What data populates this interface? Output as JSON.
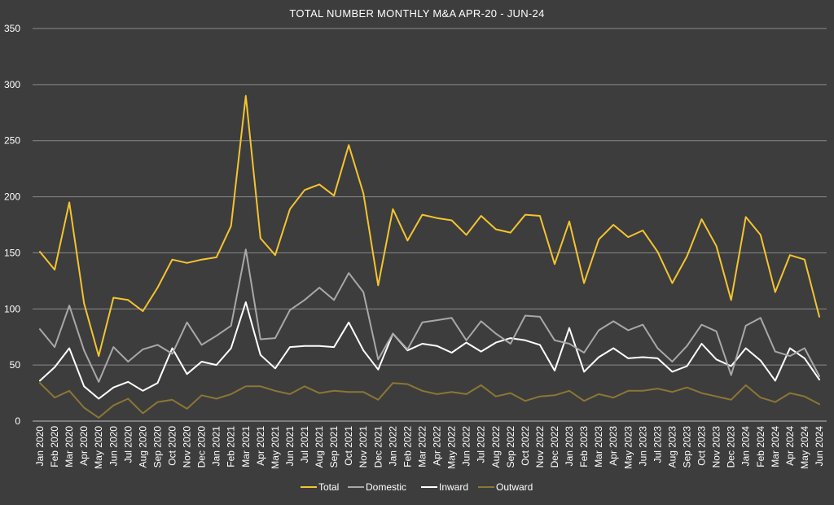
{
  "chart_data": {
    "type": "line",
    "title": "TOTAL NUMBER MONTHLY M&A APR-20 - JUN-24",
    "xlabel": "",
    "ylabel": "",
    "ylim": [
      0,
      350
    ],
    "yticks": [
      0,
      50,
      100,
      150,
      200,
      250,
      300,
      350
    ],
    "grid": true,
    "legend_position": "bottom",
    "background": "#3d3d3d",
    "categories": [
      "Jan 2020",
      "Feb 2020",
      "Mar 2020",
      "Apr 2020",
      "May 2020",
      "Jun 2020",
      "Jul 2020",
      "Aug 2020",
      "Sep 2020",
      "Oct 2020",
      "Nov 2020",
      "Dec 2020",
      "Jan 2021",
      "Feb 2021",
      "Mar 2021",
      "Apr 2021",
      "May 2021",
      "Jun 2021",
      "Jul 2021",
      "Aug 2021",
      "Sep 2021",
      "Oct 2021",
      "Nov 2021",
      "Dec 2021",
      "Jan 2022",
      "Feb 2022",
      "Mar 2022",
      "Apr 2022",
      "May 2022",
      "Jun 2022",
      "Jul 2022",
      "Aug 2022",
      "Sep 2022",
      "Oct 2022",
      "Nov 2022",
      "Dec 2022",
      "Jan 2023",
      "Feb 2023",
      "Mar 2023",
      "Apr 2023",
      "May 2023",
      "Jun 2023",
      "Jul 2023",
      "Aug 2023",
      "Sep 2023",
      "Oct 2023",
      "Nov 2023",
      "Dec 2023",
      "Jan 2024",
      "Feb 2024",
      "Mar 2024",
      "Apr 2024",
      "May 2024",
      "Jun 2024"
    ],
    "series": [
      {
        "name": "Total",
        "color": "#f4c430",
        "values": [
          151,
          135,
          195,
          105,
          58,
          110,
          108,
          98,
          119,
          144,
          141,
          144,
          146,
          174,
          290,
          163,
          148,
          189,
          206,
          211,
          201,
          246,
          203,
          121,
          189,
          161,
          184,
          181,
          179,
          166,
          183,
          171,
          168,
          184,
          183,
          140,
          178,
          123,
          162,
          175,
          164,
          170,
          151,
          123,
          147,
          180,
          156,
          108,
          182,
          166,
          115,
          148,
          144,
          93
        ]
      },
      {
        "name": "Domestic",
        "color": "#a8a8a8",
        "values": [
          82,
          66,
          103,
          63,
          35,
          66,
          53,
          64,
          68,
          60,
          88,
          68,
          76,
          85,
          153,
          73,
          74,
          99,
          108,
          119,
          108,
          132,
          115,
          55,
          78,
          64,
          88,
          90,
          92,
          72,
          89,
          78,
          69,
          94,
          93,
          72,
          69,
          61,
          81,
          89,
          81,
          86,
          65,
          53,
          67,
          86,
          80,
          41,
          85,
          92,
          62,
          58,
          65,
          40
        ]
      },
      {
        "name": "Inward",
        "color": "#ffffff",
        "values": [
          36,
          48,
          65,
          31,
          20,
          30,
          35,
          27,
          34,
          65,
          42,
          53,
          50,
          65,
          106,
          59,
          47,
          66,
          67,
          67,
          66,
          88,
          63,
          46,
          78,
          63,
          69,
          67,
          61,
          70,
          62,
          70,
          74,
          72,
          68,
          45,
          83,
          44,
          57,
          65,
          56,
          57,
          56,
          44,
          49,
          69,
          55,
          49,
          65,
          54,
          36,
          65,
          56,
          37
        ]
      },
      {
        "name": "Outward",
        "color": "#8c7635",
        "values": [
          34,
          21,
          27,
          12,
          3,
          14,
          20,
          7,
          17,
          19,
          11,
          23,
          20,
          24,
          31,
          31,
          27,
          24,
          31,
          25,
          27,
          26,
          26,
          19,
          34,
          33,
          27,
          24,
          26,
          24,
          32,
          22,
          25,
          18,
          22,
          23,
          27,
          18,
          24,
          21,
          27,
          27,
          29,
          26,
          30,
          25,
          22,
          19,
          32,
          21,
          17,
          25,
          22,
          15
        ]
      }
    ]
  }
}
